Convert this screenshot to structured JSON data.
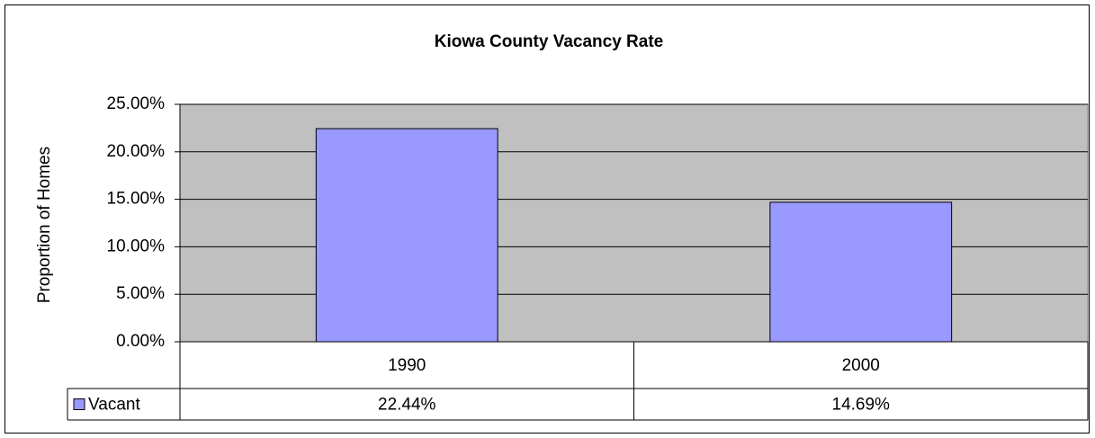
{
  "chart_data": {
    "type": "bar",
    "title": "Kiowa County Vacancy Rate",
    "y_label": "Proportion of Homes",
    "categories": [
      "1990",
      "2000"
    ],
    "series": [
      {
        "name": "Vacant",
        "color": "#9999ff",
        "values": [
          22.44,
          14.69
        ],
        "value_labels": [
          "22.44%",
          "14.69%"
        ]
      }
    ],
    "ylim": [
      0,
      25
    ],
    "yticks": [
      {
        "value": 0,
        "label": "0.00%"
      },
      {
        "value": 5,
        "label": "5.00%"
      },
      {
        "value": 10,
        "label": "10.00%"
      },
      {
        "value": 15,
        "label": "15.00%"
      },
      {
        "value": 20,
        "label": "20.00%"
      },
      {
        "value": 25,
        "label": "25.00%"
      }
    ],
    "grid": true,
    "plot_background": "#c0c0c0"
  }
}
